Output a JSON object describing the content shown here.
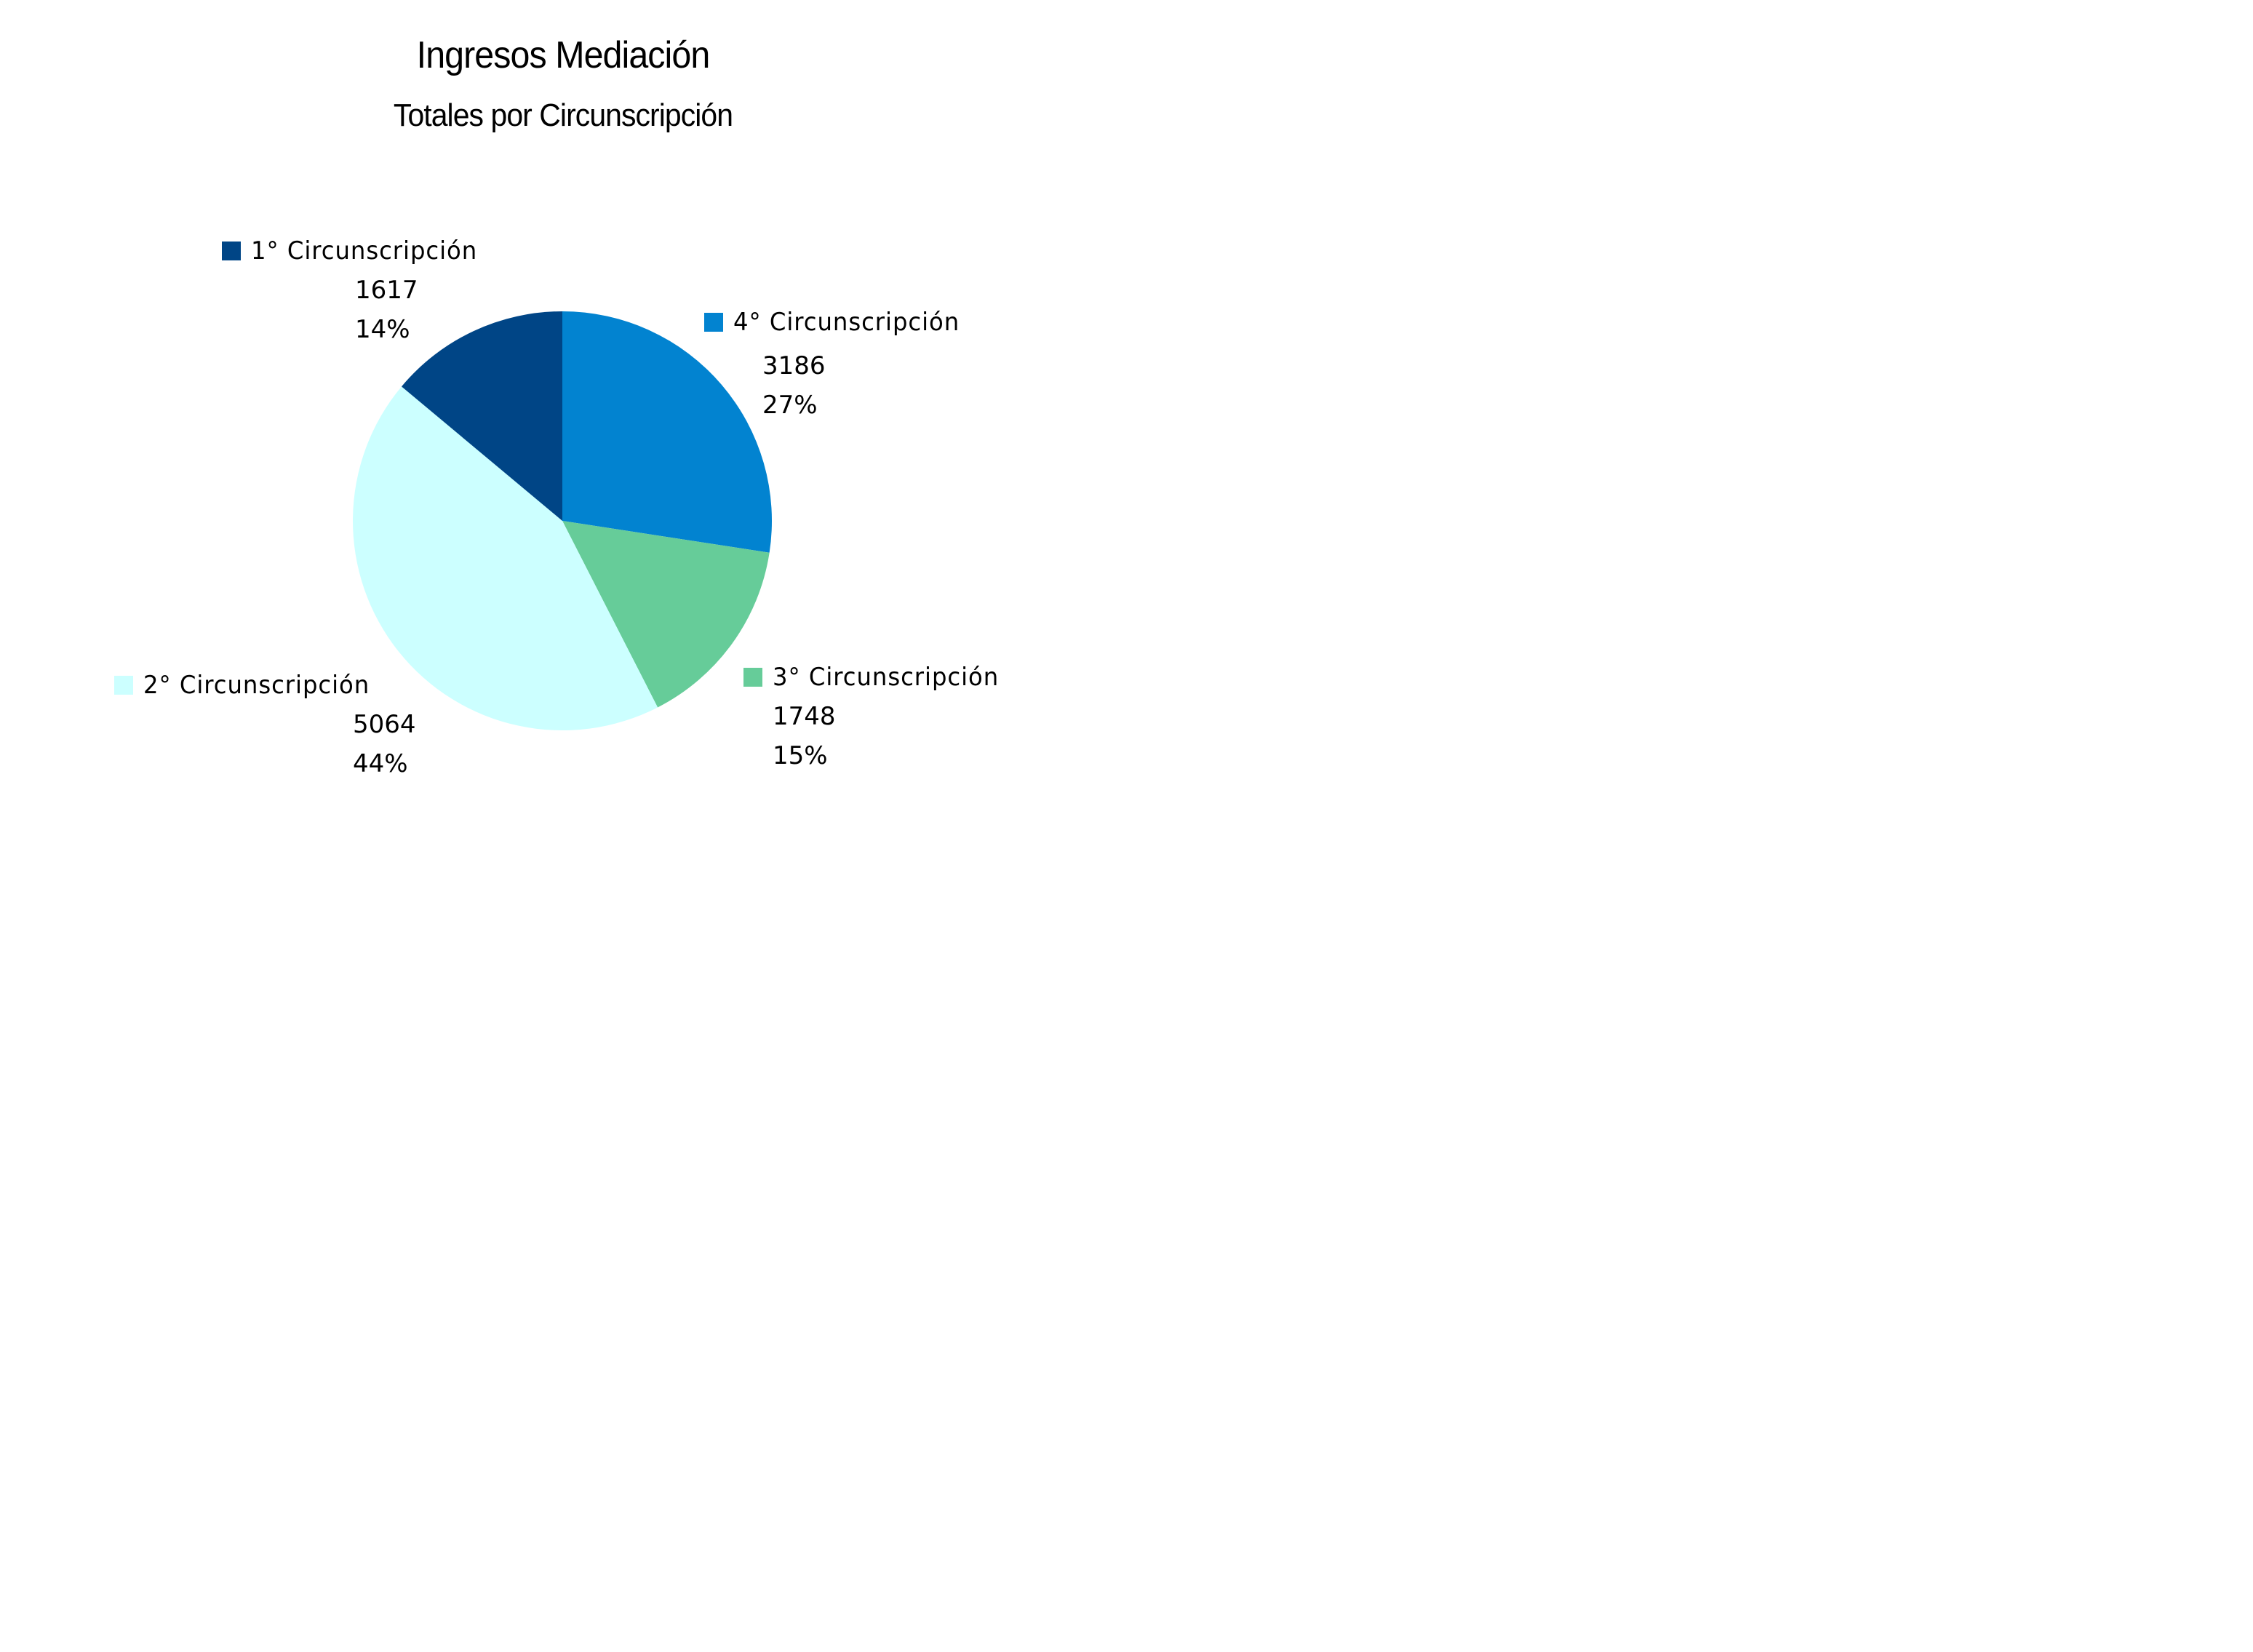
{
  "chart_data": {
    "type": "pie",
    "title": "Ingresos Mediación",
    "subtitle": "Totales por Circunscripción",
    "start_angle": "12 o'clock, clockwise",
    "categories": [
      "4° Circunscripción",
      "3° Circunscripción",
      "2° Circunscripción",
      "1° Circunscripción"
    ],
    "values": [
      3186,
      1748,
      5064,
      1617
    ],
    "percentages": [
      "27%",
      "15%",
      "44%",
      "14%"
    ],
    "colors": [
      "#0283D0",
      "#66CC99",
      "#CCFFFF",
      "#004586"
    ],
    "legend": "inline data labels with color swatches"
  },
  "labels": [
    {
      "name": "1° Circunscripción",
      "value": "1617",
      "pct": "14%",
      "color": "#004586"
    },
    {
      "name": "4° Circunscripción",
      "value": "3186",
      "pct": "27%",
      "color": "#0283D0"
    },
    {
      "name": "3° Circunscripción",
      "value": "1748",
      "pct": "15%",
      "color": "#66CC99"
    },
    {
      "name": "2° Circunscripción",
      "value": "5064",
      "pct": "44%",
      "color": "#CCFFFF"
    }
  ]
}
